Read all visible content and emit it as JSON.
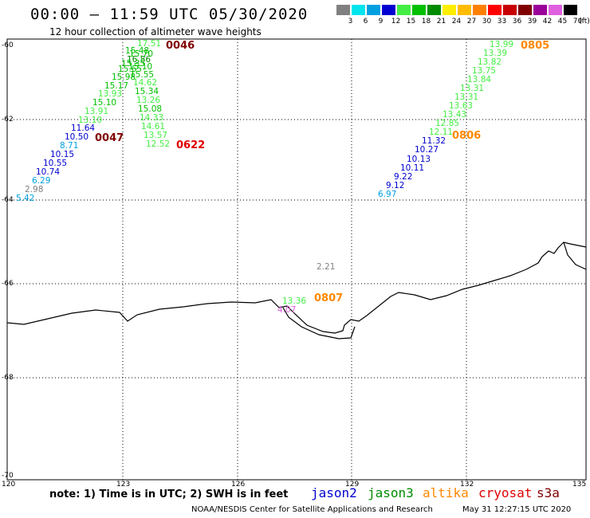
{
  "title": "00:00 – 11:59 UTC 05/30/2020",
  "subtitle": "12 hour collection of altimeter wave heights",
  "legend": {
    "unit": "(ft)",
    "bins": [
      {
        "label": "3",
        "color": "#808080"
      },
      {
        "label": "6",
        "color": "#00e5ee"
      },
      {
        "label": "9",
        "color": "#00a0e0"
      },
      {
        "label": "12",
        "color": "#0000d0"
      },
      {
        "label": "15",
        "color": "#44ee44"
      },
      {
        "label": "18",
        "color": "#00c000"
      },
      {
        "label": "21",
        "color": "#008c00"
      },
      {
        "label": "24",
        "color": "#ffee00"
      },
      {
        "label": "27",
        "color": "#ffbb00"
      },
      {
        "label": "30",
        "color": "#ff8000"
      },
      {
        "label": "33",
        "color": "#ff0000"
      },
      {
        "label": "36",
        "color": "#c80000"
      },
      {
        "label": "39",
        "color": "#800000"
      },
      {
        "label": "42",
        "color": "#9a009a"
      },
      {
        "label": "45",
        "color": "#e060e0"
      },
      {
        "label": "70",
        "color": "#000000"
      }
    ]
  },
  "axes": {
    "lat_labels": [
      "-60",
      "-62",
      "-64",
      "-66",
      "-68",
      "-70"
    ],
    "lon_labels": [
      "120",
      "123",
      "126",
      "129",
      "132",
      "135"
    ]
  },
  "passes": [
    {
      "label": "0046",
      "color": "#800000"
    },
    {
      "label": "0047",
      "color": "#800000"
    },
    {
      "label": "0622",
      "color": "#e00000"
    },
    {
      "label": "0805",
      "color": "#ff8800"
    },
    {
      "label": "0806",
      "color": "#ff8800"
    },
    {
      "label": "0807",
      "color": "#ff8800"
    }
  ],
  "observations": {
    "track_a": [
      "15.48",
      "15.70",
      "16.86",
      "15.35",
      "15.10",
      "15.65",
      "15.55",
      "15.98",
      "15.17",
      "13.93",
      "15.10",
      "13.91",
      "13.10",
      "11.64",
      "10.50",
      "8.71",
      "10.15",
      "10.55",
      "10.74",
      "6.29",
      "2.98",
      "5.42"
    ],
    "track_a_top": "17.51",
    "track_b": [
      "14.62",
      "15.34",
      "13.26",
      "15.08",
      "14.33",
      "14.61",
      "13.57",
      "12.52"
    ],
    "track_c": [
      "13.99",
      "13.39",
      "13.82",
      "13.75",
      "13.84",
      "13.31",
      "13.31",
      "13.63",
      "13.43",
      "12.85",
      "12.11",
      "11.32",
      "10.27",
      "10.13",
      "10.11",
      "9.22",
      "9.12",
      "6.97"
    ],
    "isolated": [
      "2.21",
      "13.36",
      "4.07"
    ]
  },
  "note": "note:  1) Time is in UTC;  2) SWH is in feet",
  "satellites": [
    {
      "name": "jason2",
      "color": "#0000d0"
    },
    {
      "name": "jason3",
      "color": "#008c00"
    },
    {
      "name": "altika",
      "color": "#ff8800"
    },
    {
      "name": "cryosat",
      "color": "#e00000"
    },
    {
      "name": "s3a",
      "color": "#800000"
    }
  ],
  "credit": "NOAA/NESDIS Center for Satellite Applications and Research",
  "timestamp": "May 31 12:27:15 UTC 2020"
}
